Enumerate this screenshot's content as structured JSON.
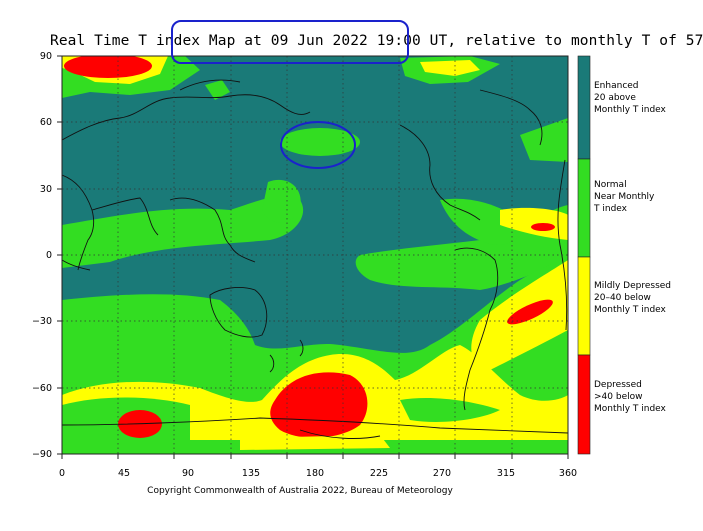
{
  "title": "Real Time T index Map at 09 Jun 2022 19:00 UT, relative to monthly T of 57",
  "copyright": "Copyright Commonwealth of Australia 2022, Bureau of Meteorology",
  "axes": {
    "x_ticks": [
      "0",
      "45",
      "90",
      "135",
      "180",
      "225",
      "270",
      "315",
      "360"
    ],
    "y_ticks": [
      "90",
      "60",
      "30",
      "0",
      "−30",
      "−60",
      "−90"
    ]
  },
  "legend": [
    {
      "lines": [
        "Enhanced",
        "20 above",
        "Monthly T index"
      ],
      "color": "#1a7a78"
    },
    {
      "lines": [
        "Normal",
        "Near Monthly",
        "T index"
      ],
      "color": "#33dd22"
    },
    {
      "lines": [
        "Mildly Depressed",
        "20–40 below",
        "Monthly T index"
      ],
      "color": "#ffff00"
    },
    {
      "lines": [
        "Depressed",
        ">40 below",
        "Monthly T index"
      ],
      "color": "#ff0000"
    }
  ],
  "colors": {
    "enhanced": "#1a7a78",
    "normal": "#33dd22",
    "mild": "#ffff00",
    "depressed": "#ff0000",
    "annotation": "#1a22cc"
  },
  "annotations": [
    "title-highlight-ellipse",
    "north-pacific-ellipse"
  ]
}
